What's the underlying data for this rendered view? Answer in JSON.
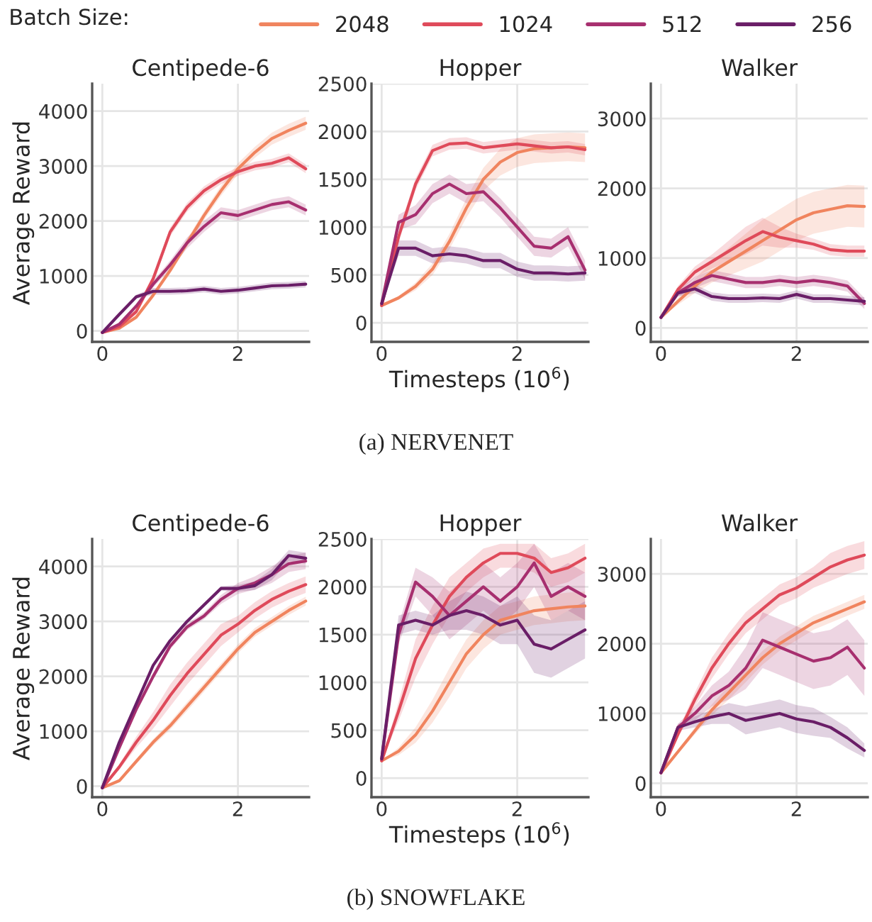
{
  "chart_data": [
    {
      "type": "line",
      "title": "Centipede-6",
      "ylabel": "Average Reward",
      "legend": "top",
      "legend_title": "Batch Size:",
      "grid": true,
      "x": [
        0,
        0.25,
        0.5,
        0.75,
        1,
        1.25,
        1.5,
        1.75,
        2,
        2.25,
        2.5,
        2.75,
        3
      ],
      "xlim": [
        -0.15,
        3.05
      ],
      "xticks": [
        0,
        2
      ],
      "ylim": [
        -200,
        4500
      ],
      "yticks": [
        0,
        1000,
        2000,
        3000,
        4000
      ],
      "series": [
        {
          "name": "2048",
          "color": "#f0845e",
          "values": [
            -30,
            50,
            250,
            650,
            1100,
            1600,
            2100,
            2550,
            2950,
            3250,
            3500,
            3650,
            3780
          ],
          "lower": [
            -30,
            30,
            210,
            600,
            1040,
            1530,
            2020,
            2460,
            2850,
            3150,
            3390,
            3530,
            3660
          ],
          "upper": [
            -30,
            70,
            290,
            700,
            1160,
            1670,
            2180,
            2640,
            3050,
            3350,
            3610,
            3770,
            3900
          ]
        },
        {
          "name": "1024",
          "color": "#df4a5a",
          "values": [
            -30,
            80,
            350,
            950,
            1800,
            2250,
            2550,
            2750,
            2900,
            3000,
            3050,
            3150,
            2950
          ],
          "lower": [
            -30,
            60,
            310,
            890,
            1720,
            2170,
            2470,
            2670,
            2820,
            2920,
            2970,
            3070,
            2870
          ],
          "upper": [
            -30,
            100,
            390,
            1010,
            1880,
            2330,
            2630,
            2830,
            2980,
            3080,
            3130,
            3230,
            3030
          ]
        },
        {
          "name": "512",
          "color": "#a72f6f",
          "values": [
            -30,
            120,
            450,
            850,
            1200,
            1600,
            1900,
            2150,
            2100,
            2200,
            2300,
            2350,
            2200
          ],
          "lower": [
            -30,
            100,
            410,
            790,
            1120,
            1500,
            1800,
            2050,
            2000,
            2100,
            2200,
            2250,
            2100
          ],
          "upper": [
            -30,
            140,
            490,
            910,
            1280,
            1700,
            2000,
            2250,
            2200,
            2300,
            2400,
            2450,
            2300
          ]
        },
        {
          "name": "256",
          "color": "#6a1e67",
          "values": [
            -30,
            300,
            620,
            720,
            720,
            730,
            760,
            720,
            740,
            780,
            820,
            830,
            850
          ],
          "lower": [
            -30,
            280,
            580,
            660,
            660,
            670,
            700,
            660,
            680,
            720,
            760,
            770,
            790
          ],
          "upper": [
            -30,
            320,
            660,
            780,
            780,
            790,
            820,
            780,
            800,
            840,
            880,
            890,
            910
          ]
        }
      ]
    },
    {
      "type": "line",
      "title": "Hopper",
      "xlabel": "Timesteps (10$^{6}$)",
      "annotations": [
        "(a) NERVENET"
      ],
      "grid": true,
      "x": [
        0,
        0.25,
        0.5,
        0.75,
        1,
        1.25,
        1.5,
        1.75,
        2,
        2.25,
        2.5,
        2.75,
        3
      ],
      "xlim": [
        -0.15,
        3.05
      ],
      "xticks": [
        0,
        2
      ],
      "ylim": [
        -200,
        2500
      ],
      "yticks": [
        0,
        500,
        1000,
        1500,
        2000,
        2500
      ],
      "series": [
        {
          "name": "2048",
          "color": "#f0845e",
          "values": [
            180,
            260,
            380,
            560,
            850,
            1200,
            1500,
            1680,
            1780,
            1820,
            1830,
            1840,
            1830
          ],
          "lower": [
            180,
            240,
            340,
            500,
            770,
            1100,
            1380,
            1540,
            1630,
            1670,
            1680,
            1690,
            1680
          ],
          "upper": [
            180,
            280,
            420,
            620,
            930,
            1300,
            1620,
            1820,
            1930,
            1970,
            1980,
            1990,
            1980
          ]
        },
        {
          "name": "1024",
          "color": "#df4a5a",
          "values": [
            180,
            900,
            1450,
            1800,
            1870,
            1880,
            1830,
            1850,
            1870,
            1850,
            1830,
            1840,
            1810
          ],
          "lower": [
            180,
            840,
            1390,
            1740,
            1810,
            1820,
            1770,
            1790,
            1810,
            1790,
            1770,
            1780,
            1750
          ],
          "upper": [
            180,
            960,
            1510,
            1860,
            1930,
            1940,
            1890,
            1910,
            1930,
            1910,
            1890,
            1900,
            1870
          ]
        },
        {
          "name": "512",
          "color": "#a72f6f",
          "values": [
            200,
            1050,
            1130,
            1350,
            1450,
            1350,
            1370,
            1200,
            1000,
            800,
            780,
            900,
            550
          ],
          "lower": [
            200,
            970,
            1030,
            1250,
            1350,
            1250,
            1270,
            1100,
            900,
            700,
            680,
            800,
            450
          ],
          "upper": [
            200,
            1130,
            1230,
            1450,
            1550,
            1450,
            1470,
            1300,
            1100,
            900,
            880,
            1000,
            650
          ]
        },
        {
          "name": "256",
          "color": "#6a1e67",
          "values": [
            200,
            780,
            780,
            700,
            720,
            700,
            650,
            650,
            560,
            520,
            520,
            510,
            520
          ],
          "lower": [
            200,
            700,
            700,
            620,
            640,
            620,
            570,
            570,
            480,
            440,
            440,
            430,
            440
          ],
          "upper": [
            200,
            860,
            860,
            780,
            800,
            780,
            730,
            730,
            640,
            600,
            600,
            590,
            600
          ]
        }
      ]
    },
    {
      "type": "line",
      "title": "Walker",
      "grid": true,
      "x": [
        0,
        0.25,
        0.5,
        0.75,
        1,
        1.25,
        1.5,
        1.75,
        2,
        2.25,
        2.5,
        2.75,
        3
      ],
      "xlim": [
        -0.15,
        3.05
      ],
      "xticks": [
        0,
        2
      ],
      "ylim": [
        -200,
        3500
      ],
      "yticks": [
        0,
        1000,
        2000,
        3000
      ],
      "series": [
        {
          "name": "2048",
          "color": "#f0845e",
          "values": [
            150,
            380,
            600,
            800,
            950,
            1100,
            1250,
            1400,
            1550,
            1650,
            1700,
            1750,
            1740
          ],
          "lower": [
            150,
            330,
            500,
            650,
            750,
            850,
            950,
            1100,
            1250,
            1350,
            1400,
            1450,
            1440
          ],
          "upper": [
            150,
            430,
            700,
            950,
            1150,
            1350,
            1550,
            1700,
            1850,
            1950,
            2000,
            2050,
            2040
          ]
        },
        {
          "name": "1024",
          "color": "#df4a5a",
          "values": [
            150,
            550,
            800,
            950,
            1100,
            1250,
            1380,
            1300,
            1250,
            1200,
            1120,
            1100,
            1100
          ],
          "lower": [
            150,
            500,
            720,
            850,
            950,
            1050,
            1180,
            1150,
            1150,
            1120,
            1040,
            1020,
            1020
          ],
          "upper": [
            150,
            600,
            880,
            1050,
            1250,
            1450,
            1580,
            1450,
            1350,
            1280,
            1200,
            1180,
            1180
          ]
        },
        {
          "name": "512",
          "color": "#a72f6f",
          "values": [
            150,
            500,
            650,
            750,
            700,
            650,
            650,
            680,
            650,
            680,
            650,
            600,
            350
          ],
          "lower": [
            150,
            450,
            570,
            670,
            620,
            570,
            570,
            600,
            570,
            600,
            570,
            520,
            270
          ],
          "upper": [
            150,
            550,
            730,
            830,
            780,
            730,
            730,
            760,
            730,
            760,
            730,
            680,
            430
          ]
        },
        {
          "name": "256",
          "color": "#6a1e67",
          "values": [
            150,
            500,
            560,
            450,
            420,
            420,
            430,
            420,
            480,
            420,
            420,
            400,
            380
          ],
          "lower": [
            150,
            450,
            500,
            390,
            360,
            360,
            370,
            360,
            420,
            360,
            360,
            340,
            320
          ],
          "upper": [
            150,
            550,
            620,
            510,
            480,
            480,
            490,
            480,
            540,
            480,
            480,
            460,
            440
          ]
        }
      ]
    },
    {
      "type": "line",
      "title": "Centipede-6",
      "ylabel": "Average Reward",
      "grid": true,
      "x": [
        0,
        0.25,
        0.5,
        0.75,
        1,
        1.25,
        1.5,
        1.75,
        2,
        2.25,
        2.5,
        2.75,
        3
      ],
      "xlim": [
        -0.15,
        3.05
      ],
      "xticks": [
        0,
        2
      ],
      "ylim": [
        -200,
        4500
      ],
      "yticks": [
        0,
        1000,
        2000,
        3000,
        4000
      ],
      "series": [
        {
          "name": "2048",
          "color": "#f0845e",
          "values": [
            -30,
            100,
            450,
            800,
            1100,
            1450,
            1800,
            2150,
            2500,
            2800,
            3000,
            3200,
            3370
          ],
          "lower": [
            -30,
            70,
            400,
            740,
            1030,
            1370,
            1720,
            2070,
            2420,
            2720,
            2920,
            3120,
            3290
          ],
          "upper": [
            -30,
            130,
            500,
            860,
            1170,
            1530,
            1880,
            2230,
            2580,
            2880,
            3080,
            3280,
            3450
          ]
        },
        {
          "name": "1024",
          "color": "#df4a5a",
          "values": [
            -30,
            350,
            800,
            1200,
            1650,
            2050,
            2400,
            2750,
            2950,
            3200,
            3400,
            3550,
            3670
          ],
          "lower": [
            -30,
            300,
            700,
            1050,
            1450,
            1850,
            2200,
            2550,
            2800,
            3050,
            3250,
            3400,
            3520
          ],
          "upper": [
            -30,
            400,
            900,
            1350,
            1850,
            2250,
            2600,
            2950,
            3100,
            3350,
            3550,
            3700,
            3820
          ]
        },
        {
          "name": "512",
          "color": "#a72f6f",
          "values": [
            -30,
            700,
            1400,
            2000,
            2550,
            2900,
            3100,
            3400,
            3600,
            3700,
            3850,
            4050,
            4100
          ],
          "lower": [
            -30,
            650,
            1340,
            1940,
            2490,
            2840,
            3040,
            3320,
            3500,
            3580,
            3700,
            3900,
            3950
          ],
          "upper": [
            -30,
            750,
            1460,
            2060,
            2610,
            2960,
            3160,
            3480,
            3700,
            3820,
            4000,
            4200,
            4250
          ]
        },
        {
          "name": "256",
          "color": "#6a1e67",
          "values": [
            -30,
            800,
            1500,
            2200,
            2650,
            3000,
            3300,
            3600,
            3600,
            3650,
            3850,
            4200,
            4150
          ],
          "lower": [
            -30,
            760,
            1460,
            2160,
            2610,
            2960,
            3260,
            3560,
            3540,
            3570,
            3750,
            4100,
            4050
          ],
          "upper": [
            -30,
            840,
            1540,
            2240,
            2690,
            3040,
            3340,
            3640,
            3660,
            3730,
            3950,
            4300,
            4250
          ]
        }
      ]
    },
    {
      "type": "line",
      "title": "Hopper",
      "xlabel": "Timesteps (10$^{6}$)",
      "annotations": [
        "(b) SNOWFLAKE"
      ],
      "grid": true,
      "x": [
        0,
        0.25,
        0.5,
        0.75,
        1,
        1.25,
        1.5,
        1.75,
        2,
        2.25,
        2.5,
        2.75,
        3
      ],
      "xlim": [
        -0.15,
        3.05
      ],
      "xticks": [
        0,
        2
      ],
      "ylim": [
        -200,
        2500
      ],
      "yticks": [
        0,
        500,
        1000,
        1500,
        2000,
        2500
      ],
      "series": [
        {
          "name": "2048",
          "color": "#f0845e",
          "values": [
            180,
            280,
            450,
            700,
            1000,
            1300,
            1500,
            1650,
            1700,
            1750,
            1770,
            1790,
            1800
          ],
          "lower": [
            180,
            240,
            370,
            580,
            850,
            1150,
            1350,
            1500,
            1550,
            1600,
            1620,
            1640,
            1650
          ],
          "upper": [
            180,
            320,
            530,
            820,
            1150,
            1450,
            1650,
            1800,
            1850,
            1900,
            1920,
            1940,
            1950
          ]
        },
        {
          "name": "1024",
          "color": "#df4a5a",
          "values": [
            180,
            700,
            1250,
            1600,
            1900,
            2100,
            2250,
            2350,
            2350,
            2300,
            2150,
            2200,
            2300
          ],
          "lower": [
            180,
            600,
            1050,
            1400,
            1700,
            1950,
            2100,
            2200,
            2200,
            2150,
            2000,
            2050,
            2150
          ],
          "upper": [
            180,
            800,
            1450,
            1800,
            2100,
            2250,
            2400,
            2450,
            2450,
            2450,
            2300,
            2350,
            2450
          ]
        },
        {
          "name": "512",
          "color": "#a72f6f",
          "values": [
            200,
            1500,
            2050,
            1900,
            1700,
            1850,
            2000,
            1850,
            2000,
            2250,
            1900,
            2000,
            1900
          ],
          "lower": [
            200,
            1400,
            1900,
            1700,
            1450,
            1600,
            1750,
            1600,
            1750,
            2000,
            1650,
            1750,
            1650
          ],
          "upper": [
            200,
            1600,
            2200,
            2100,
            1950,
            2100,
            2250,
            2100,
            2250,
            2450,
            2150,
            2250,
            2150
          ]
        },
        {
          "name": "256",
          "color": "#6a1e67",
          "values": [
            200,
            1600,
            1650,
            1600,
            1700,
            1750,
            1700,
            1600,
            1650,
            1400,
            1350,
            1450,
            1550
          ],
          "lower": [
            200,
            1500,
            1550,
            1500,
            1550,
            1550,
            1500,
            1400,
            1400,
            1100,
            1050,
            1150,
            1250
          ],
          "upper": [
            200,
            1700,
            1750,
            1700,
            1850,
            1950,
            1900,
            1800,
            1900,
            1700,
            1650,
            1750,
            1850
          ]
        }
      ]
    },
    {
      "type": "line",
      "title": "Walker",
      "grid": true,
      "x": [
        0,
        0.25,
        0.5,
        0.75,
        1,
        1.25,
        1.5,
        1.75,
        2,
        2.25,
        2.5,
        2.75,
        3
      ],
      "xlim": [
        -0.15,
        3.05
      ],
      "xticks": [
        0,
        2
      ],
      "ylim": [
        -200,
        3500
      ],
      "yticks": [
        0,
        1000,
        2000,
        3000
      ],
      "series": [
        {
          "name": "2048",
          "color": "#f0845e",
          "values": [
            150,
            450,
            750,
            1050,
            1300,
            1550,
            1800,
            2000,
            2150,
            2300,
            2400,
            2500,
            2600
          ],
          "lower": [
            150,
            420,
            700,
            970,
            1200,
            1450,
            1700,
            1900,
            2050,
            2200,
            2300,
            2400,
            2500
          ],
          "upper": [
            150,
            480,
            800,
            1130,
            1400,
            1650,
            1900,
            2100,
            2250,
            2400,
            2500,
            2600,
            2700
          ]
        },
        {
          "name": "1024",
          "color": "#df4a5a",
          "values": [
            150,
            700,
            1200,
            1650,
            2000,
            2300,
            2500,
            2700,
            2800,
            2950,
            3100,
            3200,
            3270
          ],
          "lower": [
            150,
            650,
            1100,
            1500,
            1850,
            2150,
            2350,
            2550,
            2650,
            2800,
            2900,
            3000,
            3070
          ],
          "upper": [
            150,
            750,
            1300,
            1800,
            2150,
            2450,
            2650,
            2850,
            2950,
            3100,
            3300,
            3400,
            3470
          ]
        },
        {
          "name": "512",
          "color": "#a72f6f",
          "values": [
            150,
            800,
            1000,
            1250,
            1400,
            1650,
            2050,
            1950,
            1850,
            1750,
            1800,
            1950,
            1650
          ],
          "lower": [
            150,
            750,
            900,
            1100,
            1200,
            1350,
            1650,
            1550,
            1450,
            1350,
            1400,
            1550,
            1250
          ],
          "upper": [
            150,
            850,
            1100,
            1400,
            1600,
            1950,
            2450,
            2350,
            2250,
            2150,
            2200,
            2350,
            2050
          ]
        },
        {
          "name": "256",
          "color": "#6a1e67",
          "values": [
            150,
            800,
            880,
            950,
            1000,
            900,
            950,
            1000,
            920,
            880,
            800,
            650,
            470
          ],
          "lower": [
            150,
            750,
            800,
            850,
            850,
            700,
            750,
            800,
            720,
            680,
            650,
            500,
            370
          ],
          "upper": [
            150,
            850,
            960,
            1050,
            1150,
            1100,
            1150,
            1200,
            1120,
            1080,
            950,
            800,
            570
          ]
        }
      ]
    }
  ]
}
